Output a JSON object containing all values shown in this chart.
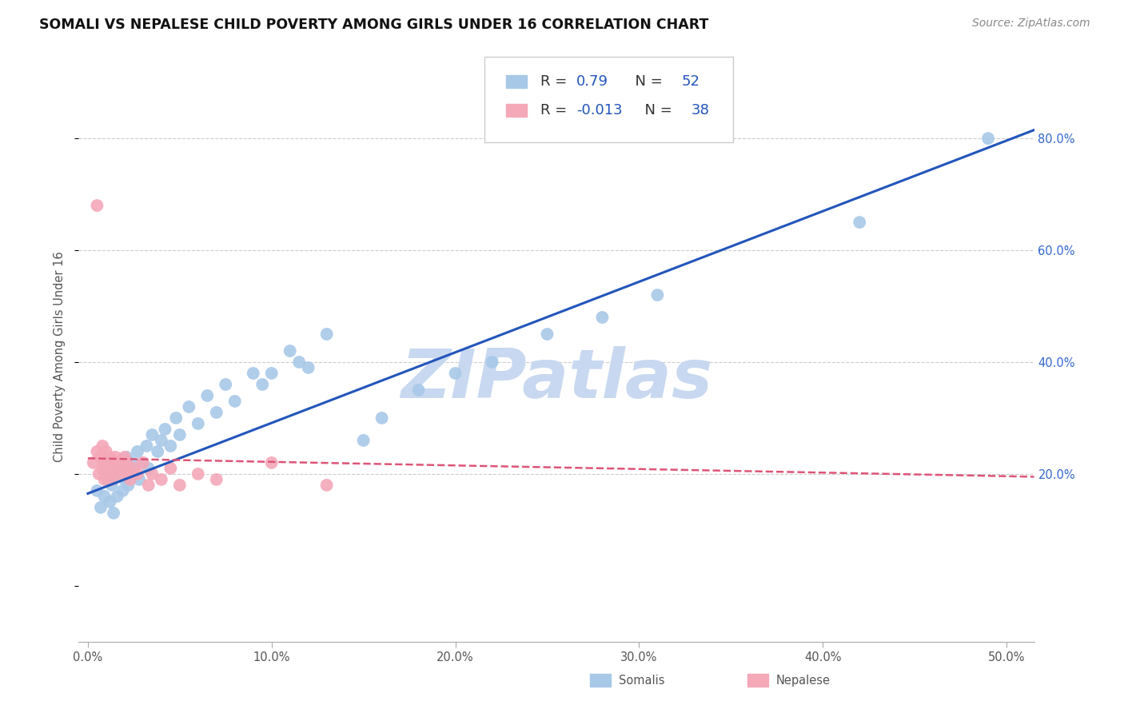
{
  "title": "SOMALI VS NEPALESE CHILD POVERTY AMONG GIRLS UNDER 16 CORRELATION CHART",
  "source": "Source: ZipAtlas.com",
  "ylabel": "Child Poverty Among Girls Under 16",
  "xlabel_ticks": [
    "0.0%",
    "10.0%",
    "20.0%",
    "30.0%",
    "40.0%",
    "50.0%"
  ],
  "xlabel_vals": [
    0.0,
    0.1,
    0.2,
    0.3,
    0.4,
    0.5
  ],
  "ylabel_ticks": [
    "20.0%",
    "40.0%",
    "60.0%",
    "80.0%"
  ],
  "ylabel_vals": [
    0.2,
    0.4,
    0.6,
    0.8
  ],
  "xlim": [
    -0.005,
    0.515
  ],
  "ylim": [
    -0.1,
    0.92
  ],
  "somali_R": 0.79,
  "somali_N": 52,
  "nepalese_R": -0.013,
  "nepalese_N": 38,
  "somali_color": "#a8c8e8",
  "nepalese_color": "#f4a8b8",
  "somali_line_color": "#2255bb",
  "nepalese_line_color": "#dd5577",
  "watermark": "ZIPatlas",
  "watermark_color": "#c8d8f0",
  "somali_x": [
    0.005,
    0.007,
    0.009,
    0.01,
    0.011,
    0.012,
    0.013,
    0.014,
    0.015,
    0.016,
    0.018,
    0.019,
    0.02,
    0.021,
    0.022,
    0.024,
    0.025,
    0.027,
    0.028,
    0.03,
    0.032,
    0.033,
    0.035,
    0.038,
    0.04,
    0.042,
    0.045,
    0.048,
    0.05,
    0.055,
    0.06,
    0.065,
    0.07,
    0.075,
    0.08,
    0.09,
    0.095,
    0.1,
    0.11,
    0.115,
    0.12,
    0.13,
    0.15,
    0.16,
    0.18,
    0.2,
    0.22,
    0.25,
    0.28,
    0.31,
    0.42,
    0.49
  ],
  "somali_y": [
    0.17,
    0.14,
    0.16,
    0.22,
    0.19,
    0.15,
    0.18,
    0.13,
    0.2,
    0.16,
    0.21,
    0.17,
    0.19,
    0.23,
    0.18,
    0.22,
    0.2,
    0.24,
    0.19,
    0.22,
    0.25,
    0.21,
    0.27,
    0.24,
    0.26,
    0.28,
    0.25,
    0.3,
    0.27,
    0.32,
    0.29,
    0.34,
    0.31,
    0.36,
    0.33,
    0.38,
    0.36,
    0.38,
    0.42,
    0.4,
    0.39,
    0.45,
    0.26,
    0.3,
    0.35,
    0.38,
    0.4,
    0.45,
    0.48,
    0.52,
    0.65,
    0.8
  ],
  "nepalese_x": [
    0.003,
    0.005,
    0.006,
    0.007,
    0.008,
    0.008,
    0.009,
    0.009,
    0.01,
    0.01,
    0.011,
    0.012,
    0.013,
    0.013,
    0.014,
    0.015,
    0.015,
    0.016,
    0.017,
    0.018,
    0.019,
    0.02,
    0.021,
    0.022,
    0.023,
    0.025,
    0.027,
    0.03,
    0.033,
    0.035,
    0.04,
    0.045,
    0.05,
    0.06,
    0.07,
    0.1,
    0.13,
    0.005
  ],
  "nepalese_y": [
    0.22,
    0.24,
    0.2,
    0.23,
    0.21,
    0.25,
    0.19,
    0.22,
    0.2,
    0.24,
    0.21,
    0.23,
    0.19,
    0.22,
    0.2,
    0.21,
    0.23,
    0.22,
    0.2,
    0.22,
    0.21,
    0.23,
    0.22,
    0.2,
    0.19,
    0.21,
    0.2,
    0.22,
    0.18,
    0.2,
    0.19,
    0.21,
    0.18,
    0.2,
    0.19,
    0.22,
    0.18,
    0.68
  ],
  "somali_line_x0": 0.0,
  "somali_line_y0": 0.165,
  "somali_line_x1": 0.515,
  "somali_line_y1": 0.815,
  "nepalese_line_x0": 0.0,
  "nepalese_line_y0": 0.228,
  "nepalese_line_x1": 0.515,
  "nepalese_line_y1": 0.195
}
